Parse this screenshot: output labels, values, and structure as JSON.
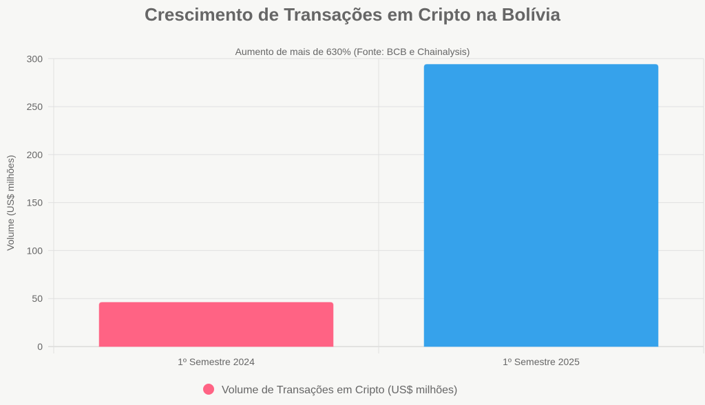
{
  "chart_data": {
    "type": "bar",
    "title": "Crescimento de Transações em Cripto na Bolívia",
    "subtitle": "Aumento de mais de 630% (Fonte: BCB e Chainalysis)",
    "categories": [
      "1º Semestre 2024",
      "1º Semestre 2025"
    ],
    "series": [
      {
        "name": "Volume de Transações em Cripto (US$ milhões)",
        "values": [
          46,
          294
        ],
        "colors": [
          "#ff6384",
          "#36a2eb"
        ]
      }
    ],
    "xlabel": "",
    "ylabel": "Volume (US$ milhões)",
    "ylim": [
      0,
      300
    ],
    "yticks": [
      0,
      50,
      100,
      150,
      200,
      250,
      300
    ],
    "grid": true,
    "legend_position": "bottom"
  }
}
